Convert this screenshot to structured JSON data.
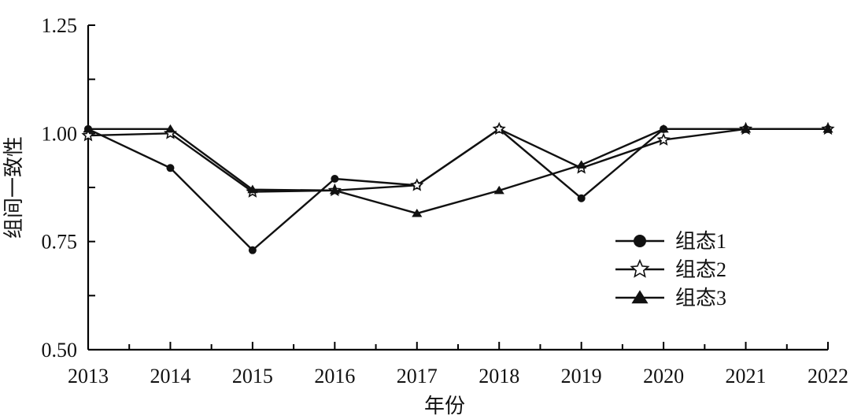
{
  "chart_data": {
    "type": "line",
    "title": "",
    "xlabel": "年份",
    "ylabel": "组间一致性",
    "x": [
      2013,
      2014,
      2015,
      2016,
      2017,
      2018,
      2019,
      2020,
      2021,
      2022
    ],
    "xticks": [
      "2013",
      "2014",
      "2015",
      "2016",
      "2017",
      "2018",
      "2019",
      "2020",
      "2021",
      "2022"
    ],
    "yticks": [
      "0.50",
      "0.75",
      "1.00",
      "1.25"
    ],
    "ylim": [
      0.5,
      1.25
    ],
    "grid": false,
    "legend_position": "right",
    "series": [
      {
        "name": "组态1",
        "marker": "circle",
        "values": [
          1.01,
          0.92,
          0.73,
          0.895,
          0.88,
          1.01,
          0.85,
          1.01,
          1.01,
          1.01
        ]
      },
      {
        "name": "组态2",
        "marker": "star",
        "values": [
          0.995,
          1.0,
          0.865,
          0.868,
          0.88,
          1.01,
          0.92,
          0.985,
          1.01,
          1.01
        ]
      },
      {
        "name": "组态3",
        "marker": "triangle",
        "values": [
          1.01,
          1.01,
          0.87,
          0.868,
          0.815,
          0.868,
          0.927,
          1.01,
          1.01,
          1.01
        ]
      }
    ]
  }
}
